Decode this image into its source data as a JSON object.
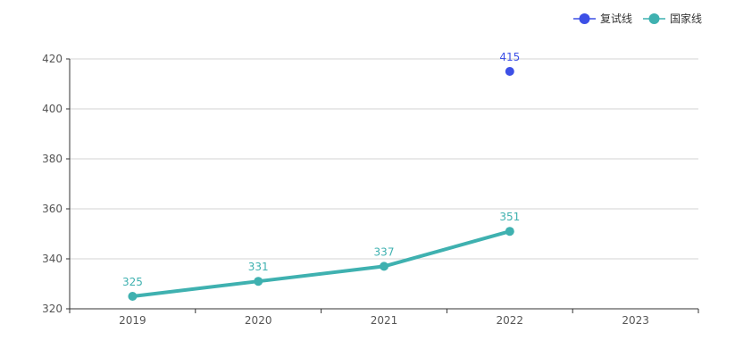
{
  "chart_data": {
    "type": "line",
    "categories": [
      "2019",
      "2020",
      "2021",
      "2022",
      "2023"
    ],
    "yticks": [
      320,
      340,
      360,
      380,
      400,
      420
    ],
    "ylim": [
      320,
      420
    ],
    "grid": true,
    "legend_position": "top-right",
    "series": [
      {
        "name": "复试线",
        "color": "#3d50e6",
        "values": [
          null,
          null,
          null,
          415,
          null
        ],
        "labels": [
          "",
          "",
          "",
          "415",
          ""
        ]
      },
      {
        "name": "国家线",
        "color": "#3fb1b0",
        "values": [
          325,
          331,
          337,
          351,
          null
        ],
        "labels": [
          "325",
          "331",
          "337",
          "351",
          ""
        ]
      }
    ]
  }
}
